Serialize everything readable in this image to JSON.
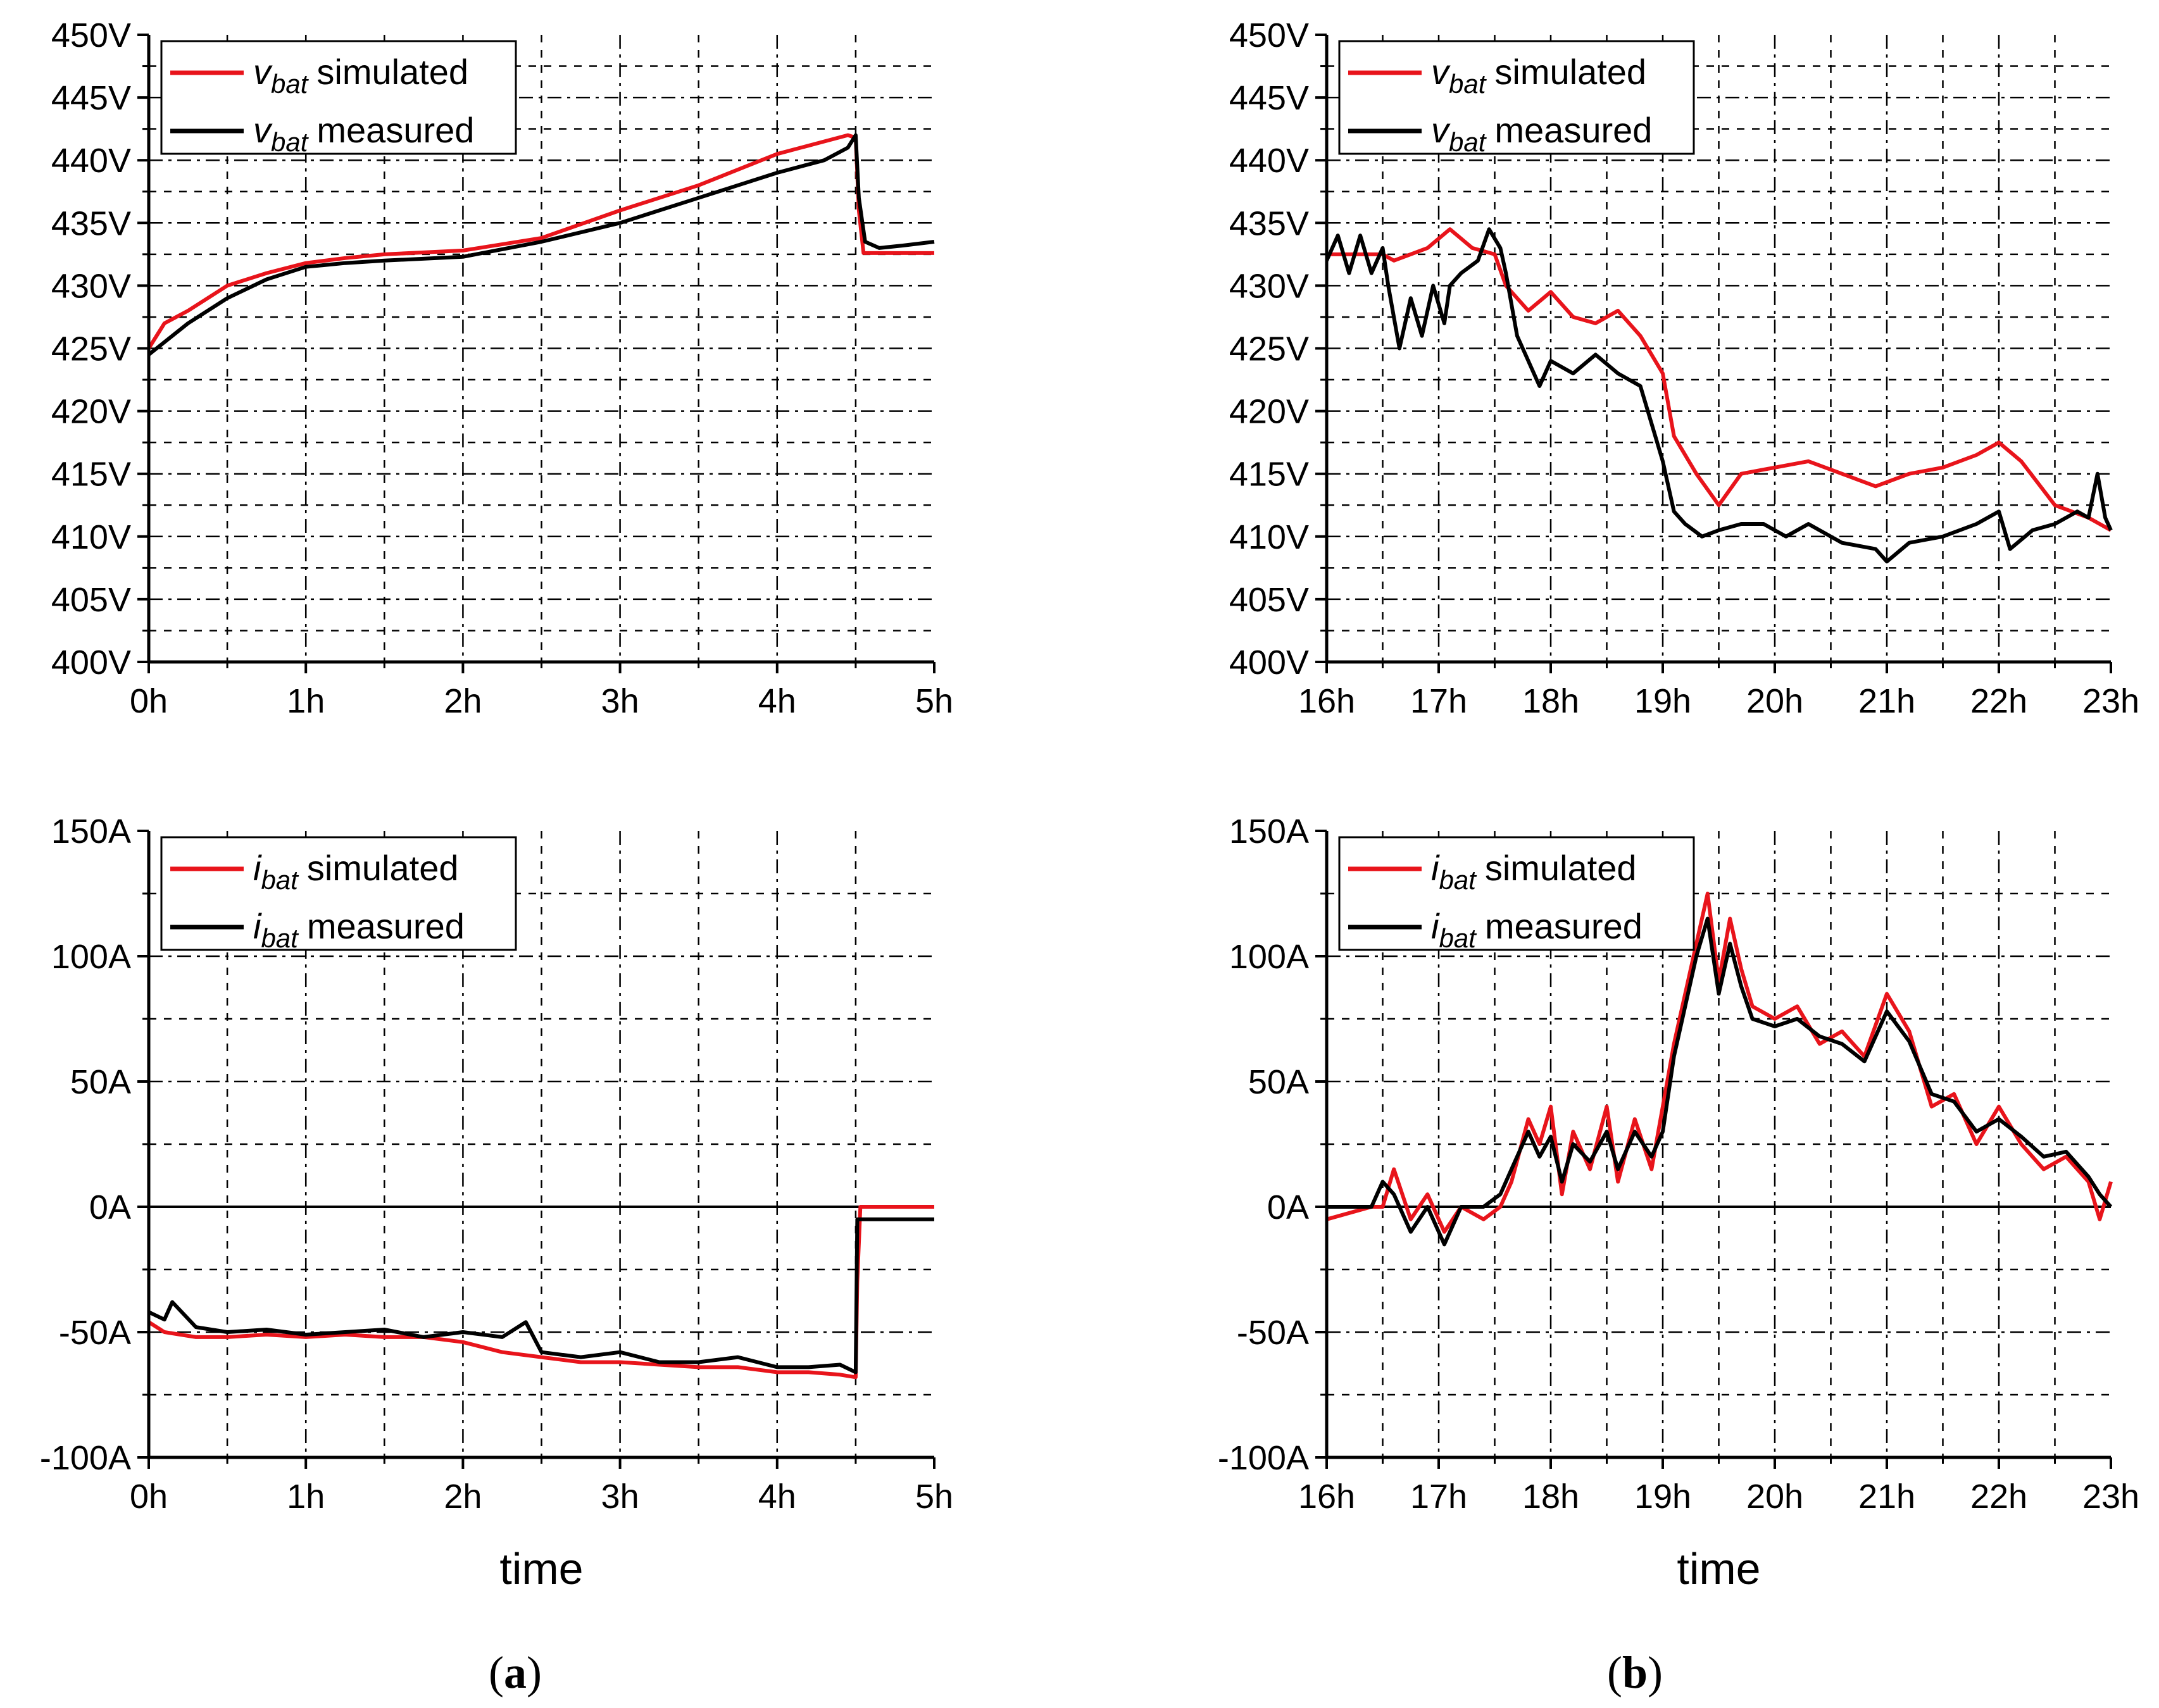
{
  "figure": {
    "panel_labels": [
      {
        "open": "(",
        "letter": "a",
        "close": ")"
      },
      {
        "open": "(",
        "letter": "b",
        "close": ")"
      }
    ]
  },
  "colors": {
    "simulated": "#e8141b",
    "measured": "#000000",
    "grid": "#000000"
  },
  "chart_data": [
    {
      "id": "a-voltage",
      "type": "line",
      "x_unit_suffix": "h",
      "y_unit_suffix": "V",
      "xlim": [
        0,
        5
      ],
      "ylim": [
        400,
        450
      ],
      "x_ticks": [
        0,
        1,
        2,
        3,
        4,
        5
      ],
      "y_ticks": [
        400,
        405,
        410,
        415,
        420,
        425,
        430,
        435,
        440,
        445,
        450
      ],
      "xlabel": "",
      "ylabel": "",
      "zero_line": false,
      "legend": {
        "position": "top-left",
        "symbol": "v",
        "subscript": "bat"
      },
      "series": [
        {
          "name": "simulated",
          "color": "#e8141b",
          "x": [
            0,
            0.1,
            0.25,
            0.5,
            0.75,
            1,
            1.25,
            1.5,
            2,
            2.5,
            3,
            3.5,
            4,
            4.3,
            4.45,
            4.5,
            4.52,
            4.55,
            5
          ],
          "y": [
            425,
            427,
            428,
            430,
            431,
            431.8,
            432.2,
            432.5,
            432.8,
            433.8,
            436,
            438,
            440.5,
            441.5,
            442,
            441.8,
            436,
            432.6,
            432.6
          ]
        },
        {
          "name": "measured",
          "color": "#000000",
          "x": [
            0,
            0.1,
            0.25,
            0.5,
            0.75,
            1,
            1.25,
            1.5,
            2,
            2.5,
            3,
            3.5,
            4,
            4.3,
            4.45,
            4.5,
            4.52,
            4.56,
            4.65,
            4.8,
            5
          ],
          "y": [
            424.5,
            425.5,
            427,
            429,
            430.5,
            431.5,
            431.8,
            432,
            432.3,
            433.5,
            435,
            437,
            439,
            440,
            441,
            442,
            437,
            433.5,
            433,
            433.2,
            433.5
          ]
        }
      ]
    },
    {
      "id": "b-voltage",
      "type": "line",
      "x_unit_suffix": "h",
      "y_unit_suffix": "V",
      "xlim": [
        16,
        23
      ],
      "ylim": [
        400,
        450
      ],
      "x_ticks": [
        16,
        17,
        18,
        19,
        20,
        21,
        22,
        23
      ],
      "y_ticks": [
        400,
        405,
        410,
        415,
        420,
        425,
        430,
        435,
        440,
        445,
        450
      ],
      "xlabel": "",
      "ylabel": "",
      "zero_line": false,
      "legend": {
        "position": "top-left",
        "symbol": "v",
        "subscript": "bat"
      },
      "series": [
        {
          "name": "simulated",
          "color": "#e8141b",
          "x": [
            16,
            16.5,
            16.6,
            16.9,
            17.1,
            17.3,
            17.5,
            17.6,
            17.8,
            18,
            18.2,
            18.4,
            18.6,
            18.8,
            19,
            19.1,
            19.3,
            19.5,
            19.7,
            20,
            20.3,
            20.6,
            20.9,
            21.2,
            21.5,
            21.8,
            22,
            22.2,
            22.5,
            22.8,
            23
          ],
          "y": [
            432.5,
            432.5,
            432,
            433,
            434.5,
            433,
            432.5,
            430,
            428,
            429.5,
            427.5,
            427,
            428,
            426,
            423,
            418,
            415,
            412.5,
            415,
            415.5,
            416,
            415,
            414,
            415,
            415.5,
            416.5,
            417.5,
            416,
            412.5,
            411.5,
            410.5
          ]
        },
        {
          "name": "measured",
          "color": "#000000",
          "x": [
            16,
            16.1,
            16.2,
            16.3,
            16.4,
            16.5,
            16.55,
            16.65,
            16.75,
            16.85,
            16.95,
            17.05,
            17.1,
            17.2,
            17.35,
            17.45,
            17.55,
            17.6,
            17.7,
            17.8,
            17.9,
            18,
            18.2,
            18.4,
            18.6,
            18.8,
            18.9,
            19,
            19.1,
            19.2,
            19.35,
            19.5,
            19.7,
            19.9,
            20.1,
            20.3,
            20.6,
            20.9,
            21,
            21.2,
            21.5,
            21.8,
            22,
            22.1,
            22.3,
            22.5,
            22.7,
            22.8,
            22.88,
            22.95,
            23
          ],
          "y": [
            432,
            434,
            431,
            434,
            431,
            433,
            430,
            425,
            429,
            426,
            430,
            427,
            430,
            431,
            432,
            434.5,
            433,
            431,
            426,
            424,
            422,
            424,
            423,
            424.5,
            423,
            422,
            419,
            416,
            412,
            411,
            410,
            410.5,
            411,
            411,
            410,
            411,
            409.5,
            409,
            408,
            409.5,
            410,
            411,
            412,
            409,
            410.5,
            411,
            412,
            411.5,
            415,
            411.5,
            410.5
          ]
        }
      ]
    },
    {
      "id": "a-current",
      "type": "line",
      "x_unit_suffix": "h",
      "y_unit_suffix": "A",
      "xlim": [
        0,
        5
      ],
      "ylim": [
        -100,
        150
      ],
      "x_ticks": [
        0,
        1,
        2,
        3,
        4,
        5
      ],
      "y_ticks": [
        -100,
        -50,
        0,
        50,
        100,
        150
      ],
      "xlabel": "time",
      "ylabel": "",
      "zero_line": true,
      "legend": {
        "position": "top-left",
        "symbol": "i",
        "subscript": "bat"
      },
      "series": [
        {
          "name": "simulated",
          "color": "#e8141b",
          "x": [
            0,
            0.1,
            0.3,
            0.5,
            0.75,
            1,
            1.25,
            1.5,
            1.75,
            2,
            2.25,
            2.5,
            2.75,
            3,
            3.25,
            3.5,
            3.75,
            4,
            4.2,
            4.4,
            4.5,
            4.51,
            4.53,
            5
          ],
          "y": [
            -46,
            -50,
            -52,
            -52,
            -51,
            -52,
            -51,
            -52,
            -52,
            -54,
            -58,
            -60,
            -62,
            -62,
            -63,
            -64,
            -64,
            -66,
            -66,
            -67,
            -68,
            -30,
            0,
            0
          ]
        },
        {
          "name": "measured",
          "color": "#000000",
          "x": [
            0,
            0.1,
            0.15,
            0.3,
            0.5,
            0.75,
            1,
            1.25,
            1.5,
            1.75,
            2,
            2.25,
            2.4,
            2.5,
            2.75,
            3,
            3.25,
            3.5,
            3.75,
            4,
            4.2,
            4.4,
            4.5,
            4.51,
            4.55,
            5
          ],
          "y": [
            -42,
            -45,
            -38,
            -48,
            -50,
            -49,
            -51,
            -50,
            -49,
            -52,
            -50,
            -52,
            -46,
            -58,
            -60,
            -58,
            -62,
            -62,
            -60,
            -64,
            -64,
            -63,
            -66,
            -5,
            -5,
            -5
          ]
        }
      ]
    },
    {
      "id": "b-current",
      "type": "line",
      "x_unit_suffix": "h",
      "y_unit_suffix": "A",
      "xlim": [
        16,
        23
      ],
      "ylim": [
        -100,
        150
      ],
      "x_ticks": [
        16,
        17,
        18,
        19,
        20,
        21,
        22,
        23
      ],
      "y_ticks": [
        -100,
        -50,
        0,
        50,
        100,
        150
      ],
      "xlabel": "time",
      "ylabel": "",
      "zero_line": true,
      "legend": {
        "position": "top-left",
        "symbol": "i",
        "subscript": "bat"
      },
      "series": [
        {
          "name": "simulated",
          "color": "#e8141b",
          "x": [
            16,
            16.4,
            16.5,
            16.6,
            16.75,
            16.9,
            17.05,
            17.2,
            17.4,
            17.55,
            17.65,
            17.8,
            17.9,
            18,
            18.1,
            18.2,
            18.35,
            18.5,
            18.6,
            18.75,
            18.9,
            19,
            19.1,
            19.2,
            19.3,
            19.4,
            19.5,
            19.6,
            19.7,
            19.8,
            20,
            20.2,
            20.4,
            20.6,
            20.8,
            21,
            21.2,
            21.4,
            21.6,
            21.8,
            22,
            22.2,
            22.4,
            22.6,
            22.8,
            22.9,
            23
          ],
          "y": [
            -5,
            0,
            0,
            15,
            -5,
            5,
            -10,
            0,
            -5,
            0,
            10,
            35,
            25,
            40,
            5,
            30,
            15,
            40,
            10,
            35,
            15,
            40,
            65,
            85,
            105,
            125,
            90,
            115,
            95,
            80,
            75,
            80,
            65,
            70,
            60,
            85,
            70,
            40,
            45,
            25,
            40,
            25,
            15,
            20,
            10,
            -5,
            10
          ]
        },
        {
          "name": "measured",
          "color": "#000000",
          "x": [
            16,
            16.4,
            16.5,
            16.6,
            16.75,
            16.9,
            17.05,
            17.2,
            17.4,
            17.55,
            17.65,
            17.8,
            17.9,
            18,
            18.1,
            18.2,
            18.35,
            18.5,
            18.6,
            18.75,
            18.9,
            19,
            19.1,
            19.2,
            19.3,
            19.4,
            19.5,
            19.6,
            19.7,
            19.8,
            20,
            20.2,
            20.4,
            20.6,
            20.8,
            21,
            21.2,
            21.4,
            21.6,
            21.8,
            22,
            22.2,
            22.4,
            22.6,
            22.8,
            22.9,
            23
          ],
          "y": [
            0,
            0,
            10,
            5,
            -10,
            0,
            -15,
            0,
            0,
            5,
            15,
            30,
            20,
            28,
            10,
            25,
            18,
            30,
            15,
            30,
            20,
            30,
            60,
            80,
            100,
            115,
            85,
            105,
            88,
            75,
            72,
            75,
            68,
            65,
            58,
            78,
            66,
            45,
            42,
            30,
            35,
            28,
            20,
            22,
            12,
            5,
            0
          ]
        }
      ]
    }
  ]
}
